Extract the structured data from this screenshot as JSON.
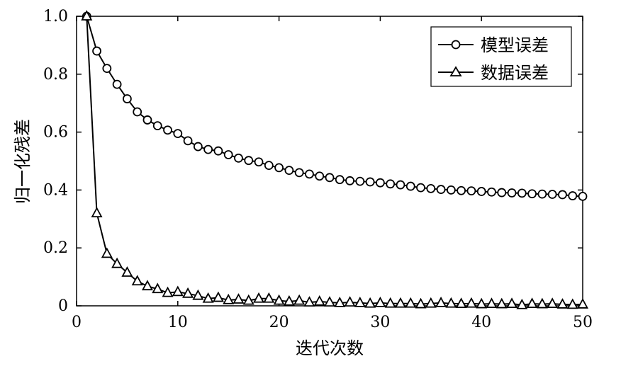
{
  "chart_data": {
    "type": "line",
    "title": "",
    "xlabel": "迭代次数",
    "ylabel": "归一化残差",
    "xlim": [
      0,
      50
    ],
    "ylim": [
      0,
      1.0
    ],
    "xticks": [
      "0",
      "10",
      "20",
      "30",
      "40",
      "50"
    ],
    "yticks": [
      "0",
      "0.2",
      "0.4",
      "0.6",
      "0.8",
      "1.0"
    ],
    "grid": false,
    "legend_position": "top-right",
    "x": [
      1,
      2,
      3,
      4,
      5,
      6,
      7,
      8,
      9,
      10,
      11,
      12,
      13,
      14,
      15,
      16,
      17,
      18,
      19,
      20,
      21,
      22,
      23,
      24,
      25,
      26,
      27,
      28,
      29,
      30,
      31,
      32,
      33,
      34,
      35,
      36,
      37,
      38,
      39,
      40,
      41,
      42,
      43,
      44,
      45,
      46,
      47,
      48,
      49,
      50
    ],
    "series": [
      {
        "name": "模型误差",
        "marker": "circle",
        "color": "#000000",
        "values": [
          1.0,
          0.88,
          0.82,
          0.765,
          0.715,
          0.67,
          0.642,
          0.622,
          0.607,
          0.595,
          0.57,
          0.55,
          0.54,
          0.535,
          0.522,
          0.51,
          0.502,
          0.497,
          0.485,
          0.477,
          0.468,
          0.46,
          0.455,
          0.448,
          0.443,
          0.436,
          0.432,
          0.43,
          0.428,
          0.425,
          0.421,
          0.418,
          0.413,
          0.408,
          0.405,
          0.402,
          0.4,
          0.398,
          0.397,
          0.395,
          0.393,
          0.391,
          0.39,
          0.389,
          0.387,
          0.386,
          0.385,
          0.384,
          0.38,
          0.378
        ]
      },
      {
        "name": "数据误差",
        "marker": "triangle",
        "color": "#000000",
        "values": [
          1.0,
          0.32,
          0.18,
          0.145,
          0.115,
          0.085,
          0.068,
          0.058,
          0.045,
          0.048,
          0.042,
          0.035,
          0.025,
          0.028,
          0.02,
          0.022,
          0.018,
          0.025,
          0.025,
          0.018,
          0.015,
          0.018,
          0.012,
          0.015,
          0.012,
          0.01,
          0.012,
          0.01,
          0.008,
          0.01,
          0.008,
          0.008,
          0.008,
          0.006,
          0.008,
          0.01,
          0.008,
          0.007,
          0.008,
          0.006,
          0.007,
          0.006,
          0.007,
          0.003,
          0.007,
          0.006,
          0.007,
          0.005,
          0.004,
          0.005
        ]
      }
    ]
  }
}
